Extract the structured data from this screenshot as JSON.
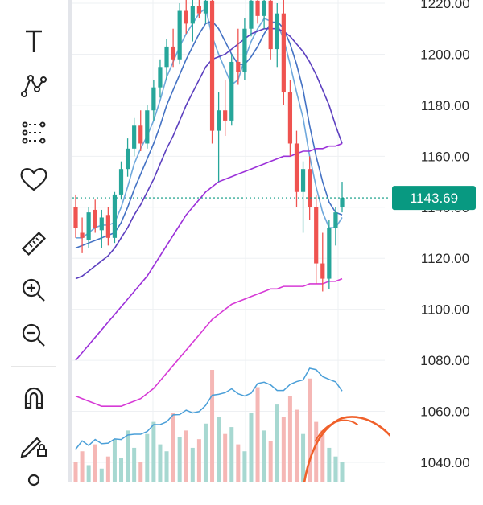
{
  "toolbar": {
    "tools": [
      {
        "name": "pen-icon"
      },
      {
        "name": "text-icon"
      },
      {
        "name": "path-icon"
      },
      {
        "name": "pattern-icon"
      },
      {
        "name": "heart-icon"
      },
      {
        "name": "ruler-icon"
      },
      {
        "name": "zoom-in-icon"
      },
      {
        "name": "zoom-out-icon"
      },
      {
        "name": "magnet-icon"
      },
      {
        "name": "lock-drawing-icon"
      },
      {
        "name": "more-icon"
      }
    ]
  },
  "chart_data": {
    "type": "candlestick",
    "y_axis": {
      "ticks": [
        "1220.00",
        "1200.00",
        "1180.00",
        "1160.00",
        "1140.00",
        "1120.00",
        "1100.00",
        "1080.00",
        "1060.00",
        "1040.00"
      ],
      "tick_values": [
        1220,
        1200,
        1180,
        1160,
        1140,
        1120,
        1100,
        1080,
        1060,
        1040
      ],
      "range": [
        1033,
        1222
      ]
    },
    "current_price": {
      "label": "1143.69",
      "value": 1143.69,
      "color": "#089981"
    },
    "up_color": "#26a69a",
    "down_color": "#ef5350",
    "ma_colors": [
      "#6fa8dc",
      "#4472c4",
      "#5c3fbf",
      "#9b30d9",
      "#d63ad6"
    ],
    "candles": [
      {
        "o": 1140,
        "h": 1145,
        "l": 1128,
        "c": 1132
      },
      {
        "o": 1130,
        "h": 1136,
        "l": 1122,
        "c": 1128
      },
      {
        "o": 1127,
        "h": 1140,
        "l": 1124,
        "c": 1138
      },
      {
        "o": 1139,
        "h": 1143,
        "l": 1130,
        "c": 1132
      },
      {
        "o": 1131,
        "h": 1139,
        "l": 1124,
        "c": 1136
      },
      {
        "o": 1137,
        "h": 1140,
        "l": 1125,
        "c": 1128
      },
      {
        "o": 1128,
        "h": 1146,
        "l": 1126,
        "c": 1145
      },
      {
        "o": 1145,
        "h": 1158,
        "l": 1143,
        "c": 1155
      },
      {
        "o": 1155,
        "h": 1167,
        "l": 1152,
        "c": 1163
      },
      {
        "o": 1163,
        "h": 1175,
        "l": 1160,
        "c": 1172
      },
      {
        "o": 1172,
        "h": 1178,
        "l": 1162,
        "c": 1165
      },
      {
        "o": 1165,
        "h": 1180,
        "l": 1163,
        "c": 1178
      },
      {
        "o": 1178,
        "h": 1190,
        "l": 1174,
        "c": 1187
      },
      {
        "o": 1187,
        "h": 1198,
        "l": 1183,
        "c": 1195
      },
      {
        "o": 1195,
        "h": 1206,
        "l": 1190,
        "c": 1203
      },
      {
        "o": 1203,
        "h": 1210,
        "l": 1195,
        "c": 1198
      },
      {
        "o": 1198,
        "h": 1220,
        "l": 1196,
        "c": 1217
      },
      {
        "o": 1217,
        "h": 1224,
        "l": 1208,
        "c": 1212
      },
      {
        "o": 1212,
        "h": 1222,
        "l": 1205,
        "c": 1219
      },
      {
        "o": 1219,
        "h": 1224,
        "l": 1214,
        "c": 1216
      },
      {
        "o": 1216,
        "h": 1223,
        "l": 1212,
        "c": 1221
      },
      {
        "o": 1221,
        "h": 1224,
        "l": 1165,
        "c": 1170
      },
      {
        "o": 1170,
        "h": 1185,
        "l": 1150,
        "c": 1178
      },
      {
        "o": 1178,
        "h": 1190,
        "l": 1168,
        "c": 1174
      },
      {
        "o": 1174,
        "h": 1200,
        "l": 1172,
        "c": 1197
      },
      {
        "o": 1197,
        "h": 1210,
        "l": 1188,
        "c": 1193
      },
      {
        "o": 1193,
        "h": 1214,
        "l": 1190,
        "c": 1210
      },
      {
        "o": 1210,
        "h": 1224,
        "l": 1207,
        "c": 1221
      },
      {
        "o": 1221,
        "h": 1224,
        "l": 1212,
        "c": 1215
      },
      {
        "o": 1215,
        "h": 1224,
        "l": 1210,
        "c": 1221
      },
      {
        "o": 1221,
        "h": 1224,
        "l": 1198,
        "c": 1202
      },
      {
        "o": 1202,
        "h": 1220,
        "l": 1195,
        "c": 1216
      },
      {
        "o": 1216,
        "h": 1222,
        "l": 1180,
        "c": 1185
      },
      {
        "o": 1185,
        "h": 1190,
        "l": 1160,
        "c": 1165
      },
      {
        "o": 1165,
        "h": 1170,
        "l": 1140,
        "c": 1146
      },
      {
        "o": 1146,
        "h": 1158,
        "l": 1130,
        "c": 1155
      },
      {
        "o": 1155,
        "h": 1160,
        "l": 1135,
        "c": 1140
      },
      {
        "o": 1140,
        "h": 1145,
        "l": 1110,
        "c": 1118
      },
      {
        "o": 1118,
        "h": 1130,
        "l": 1107,
        "c": 1112
      },
      {
        "o": 1112,
        "h": 1135,
        "l": 1108,
        "c": 1132
      },
      {
        "o": 1132,
        "h": 1140,
        "l": 1125,
        "c": 1138
      },
      {
        "o": 1140,
        "h": 1150,
        "l": 1138,
        "c": 1143.69
      }
    ],
    "volume": [
      12,
      18,
      10,
      22,
      8,
      15,
      25,
      14,
      30,
      20,
      12,
      28,
      35,
      22,
      18,
      40,
      26,
      30,
      20,
      25,
      34,
      65,
      38,
      28,
      32,
      22,
      18,
      40,
      55,
      30,
      24,
      45,
      38,
      50,
      42,
      28,
      60,
      35,
      30,
      20,
      15,
      12
    ],
    "moving_averages": [
      {
        "values": [
          1128,
          1128,
          1130,
          1132,
          1133,
          1133,
          1134,
          1140,
          1148,
          1157,
          1163,
          1168,
          1174,
          1182,
          1191,
          1197,
          1203,
          1208,
          1212,
          1216,
          1218,
          1207,
          1200,
          1194,
          1188,
          1190,
          1198,
          1205,
          1210,
          1214,
          1213,
          1212,
          1206,
          1196,
          1185,
          1175,
          1160,
          1148,
          1138,
          1132,
          1132,
          1136
        ]
      },
      {
        "values": [
          1124,
          1125,
          1126,
          1127,
          1128,
          1129,
          1130,
          1134,
          1140,
          1147,
          1153,
          1159,
          1165,
          1172,
          1180,
          1186,
          1192,
          1198,
          1203,
          1208,
          1212,
          1213,
          1210,
          1205,
          1200,
          1196,
          1196,
          1199,
          1203,
          1208,
          1212,
          1213,
          1210,
          1204,
          1196,
          1186,
          1172,
          1160,
          1150,
          1142,
          1138,
          1137
        ]
      },
      {
        "values": [
          1112,
          1113,
          1115,
          1117,
          1119,
          1121,
          1124,
          1128,
          1132,
          1137,
          1141,
          1146,
          1151,
          1157,
          1163,
          1168,
          1174,
          1180,
          1185,
          1190,
          1195,
          1198,
          1199,
          1200,
          1202,
          1204,
          1206,
          1208,
          1209,
          1210,
          1210,
          1210,
          1209,
          1207,
          1204,
          1201,
          1197,
          1192,
          1186,
          1180,
          1172,
          1165
        ]
      },
      {
        "values": [
          1080,
          1083,
          1086,
          1089,
          1092,
          1095,
          1098,
          1101,
          1104,
          1107,
          1110,
          1113,
          1117,
          1121,
          1125,
          1129,
          1133,
          1137,
          1140,
          1143,
          1146,
          1148,
          1150,
          1151,
          1152,
          1153,
          1154,
          1155,
          1156,
          1157,
          1158,
          1159,
          1160,
          1160,
          1161,
          1162,
          1162,
          1163,
          1163,
          1164,
          1164,
          1165
        ]
      },
      {
        "values": [
          1066,
          1065,
          1064,
          1063,
          1062,
          1062,
          1062,
          1062,
          1063,
          1064,
          1065,
          1067,
          1069,
          1072,
          1075,
          1078,
          1081,
          1084,
          1087,
          1090,
          1093,
          1096,
          1098,
          1100,
          1102,
          1103,
          1104,
          1105,
          1106,
          1107,
          1108,
          1108,
          1109,
          1109,
          1109,
          1109,
          1110,
          1110,
          1110,
          1111,
          1111,
          1112
        ]
      }
    ]
  }
}
